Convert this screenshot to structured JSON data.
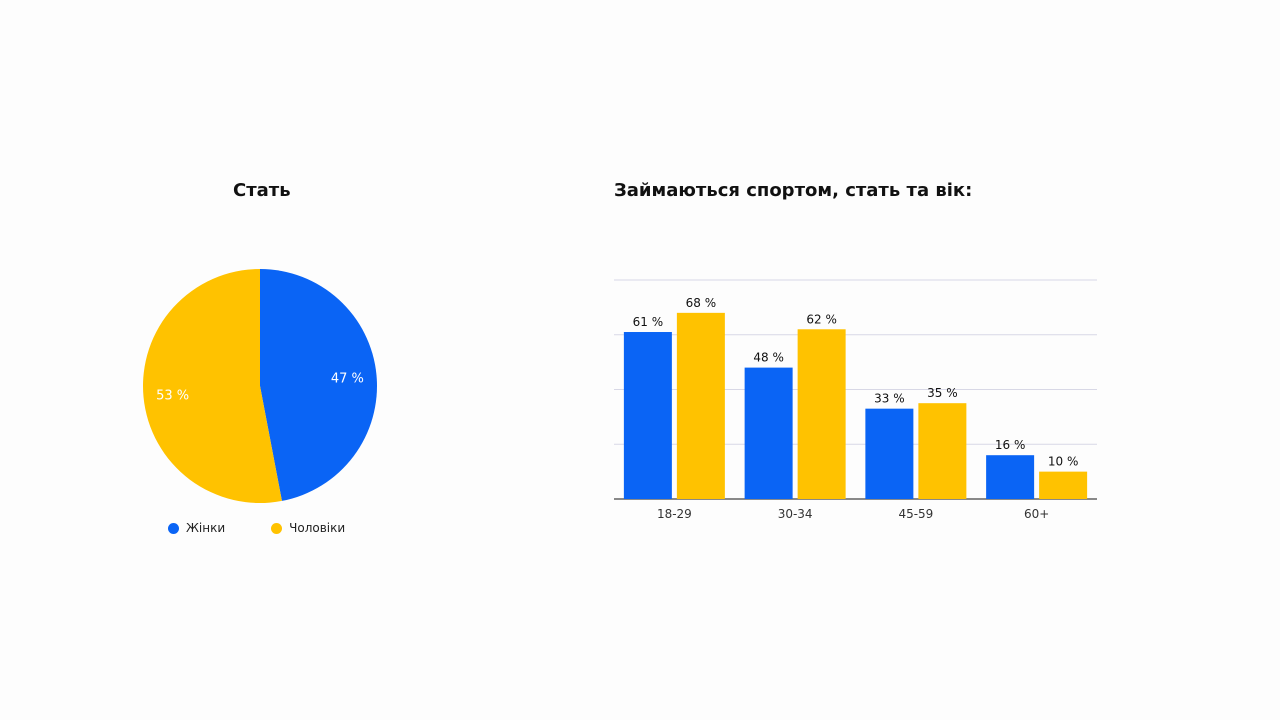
{
  "colors": {
    "women": "#0a64f5",
    "men": "#ffc200",
    "grid": "#d8d8e6",
    "axis": "#444444"
  },
  "chart_data": [
    {
      "type": "pie",
      "title": "Стать",
      "slices": [
        {
          "name": "Жінки",
          "value": 47,
          "label": "47 %",
          "color": "#0a64f5"
        },
        {
          "name": "Чоловіки",
          "value": 53,
          "label": "53 %",
          "color": "#ffc200"
        }
      ],
      "legend": "bottom"
    },
    {
      "type": "bar",
      "title": "Займаються спортом, стать та вік:",
      "categories": [
        "18-29",
        "30-34",
        "45-59",
        "60+"
      ],
      "series": [
        {
          "name": "Жінки",
          "values": [
            61,
            48,
            33,
            16
          ],
          "labels": [
            "61 %",
            "48 %",
            "33 %",
            "16 %"
          ],
          "color": "#0a64f5"
        },
        {
          "name": "Чоловіки",
          "values": [
            68,
            62,
            35,
            10
          ],
          "labels": [
            "68 %",
            "62 %",
            "35 %",
            "10 %"
          ],
          "color": "#ffc200"
        }
      ],
      "ylim": [
        0,
        80
      ],
      "grid": true,
      "xlabel": "",
      "ylabel": ""
    }
  ]
}
